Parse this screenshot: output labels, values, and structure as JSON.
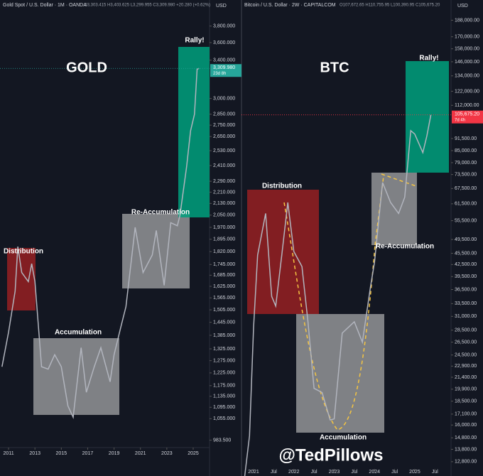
{
  "chart_data": [
    {
      "type": "line",
      "title": "GOLD",
      "subtitle": "Gold Spot / U.S. Dollar · 1M · OANDA",
      "ohlc": "O3,303.415 H3,403.625 L3,299.955 C3,309.980 +20.280 (+0.62%)",
      "y_label": "USD",
      "annotations": [
        "Distribution",
        "Accumulation",
        "Re-Accumulation",
        "Rally!"
      ],
      "last_price": {
        "value": 3309.98,
        "label": "3,309.980"
      },
      "countdown": "23d 8h",
      "log_scale": true,
      "xlim": [
        2010.35,
        2026.24
      ],
      "xticks": [
        2011,
        2013,
        2015,
        2017,
        2019,
        2021,
        2023,
        2025
      ],
      "ylim": [
        960,
        3950
      ],
      "yticks": [
        {
          "value": 3800,
          "label": "3,800.000"
        },
        {
          "value": 3600,
          "label": "3,600.000"
        },
        {
          "value": 3400,
          "label": "3,400.000"
        },
        {
          "value": 3000,
          "label": "3,000.000"
        },
        {
          "value": 2850,
          "label": "2,850.000"
        },
        {
          "value": 2750,
          "label": "2,750.000"
        },
        {
          "value": 2650,
          "label": "2,650.000"
        },
        {
          "value": 2530,
          "label": "2,530.000"
        },
        {
          "value": 2410,
          "label": "2,410.000"
        },
        {
          "value": 2290,
          "label": "2,290.000"
        },
        {
          "value": 2210,
          "label": "2,210.000"
        },
        {
          "value": 2130,
          "label": "2,130.000"
        },
        {
          "value": 2050,
          "label": "2,050.000"
        },
        {
          "value": 1970,
          "label": "1,970.000"
        },
        {
          "value": 1895,
          "label": "1,895.000"
        },
        {
          "value": 1820,
          "label": "1,820.000"
        },
        {
          "value": 1745,
          "label": "1,745.000"
        },
        {
          "value": 1685,
          "label": "1,685.000"
        },
        {
          "value": 1625,
          "label": "1,625.000"
        },
        {
          "value": 1565,
          "label": "1,565.000"
        },
        {
          "value": 1505,
          "label": "1,505.000"
        },
        {
          "value": 1445,
          "label": "1,445.000"
        },
        {
          "value": 1385,
          "label": "1,385.000"
        },
        {
          "value": 1325,
          "label": "1,325.000"
        },
        {
          "value": 1275,
          "label": "1,275.000"
        },
        {
          "value": 1225,
          "label": "1,225.000"
        },
        {
          "value": 1175,
          "label": "1,175.000"
        },
        {
          "value": 1135,
          "label": "1,135.000"
        },
        {
          "value": 1095,
          "label": "1,095.000"
        },
        {
          "value": 1055,
          "label": "1,055.000"
        },
        {
          "value": 983.5,
          "label": "983.500"
        }
      ],
      "color": "#b2b5be",
      "x": [
        2010.5,
        2011.0,
        2011.5,
        2011.7,
        2012.0,
        2012.5,
        2012.75,
        2013.0,
        2013.5,
        2014.0,
        2014.5,
        2015.0,
        2015.5,
        2015.9,
        2016.5,
        2016.9,
        2017.5,
        2018.0,
        2018.7,
        2019.0,
        2019.5,
        2019.9,
        2020.6,
        2021.2,
        2021.9,
        2022.2,
        2022.8,
        2023.3,
        2023.8,
        2024.0,
        2024.5,
        2024.8,
        2025.1,
        2025.3,
        2025.45
      ],
      "values": [
        1250,
        1400,
        1600,
        1850,
        1700,
        1650,
        1750,
        1650,
        1250,
        1240,
        1300,
        1250,
        1100,
        1060,
        1330,
        1150,
        1250,
        1330,
        1190,
        1300,
        1420,
        1520,
        1970,
        1700,
        1800,
        1950,
        1630,
        2000,
        1980,
        2050,
        2400,
        2700,
        2850,
        3300,
        3310
      ]
    },
    {
      "type": "line",
      "title": "BTC",
      "subtitle": "Bitcoin / U.S. Dollar · 2W · CAPITALCOM",
      "ohlc": "O107,672.65 H110,755.95 L100,390.95 C105,675.20",
      "y_label": "USD",
      "annotations": [
        "Distribution",
        "Accumulation",
        "Re-Accumulation",
        "Rally!"
      ],
      "last_price": {
        "value": 105675.2,
        "label": "105,675.20"
      },
      "countdown": "7d 4h",
      "log_scale": true,
      "xlim": [
        2020.7,
        2025.9
      ],
      "xticks": [
        2021,
        {
          "value": 2021.5,
          "label": "Jul"
        },
        2022,
        {
          "value": 2022.5,
          "label": "Jul"
        },
        2023,
        {
          "value": 2023.5,
          "label": "Jul"
        },
        2024,
        {
          "value": 2024.5,
          "label": "Jul"
        },
        2025,
        {
          "value": 2025.5,
          "label": "Jul"
        }
      ],
      "ylim": [
        12250,
        195000
      ],
      "yticks": [
        {
          "value": 188000,
          "label": "188,000.00"
        },
        {
          "value": 170000,
          "label": "170,000.00"
        },
        {
          "value": 158000,
          "label": "158,000.00"
        },
        {
          "value": 146000,
          "label": "146,000.00"
        },
        {
          "value": 134000,
          "label": "134,000.00"
        },
        {
          "value": 122000,
          "label": "122,000.00"
        },
        {
          "value": 112000,
          "label": "112,000.00"
        },
        {
          "value": 91500,
          "label": "91,500.00"
        },
        {
          "value": 85000,
          "label": "85,000.00"
        },
        {
          "value": 79000,
          "label": "79,000.00"
        },
        {
          "value": 73500,
          "label": "73,500.00"
        },
        {
          "value": 67500,
          "label": "67,500.00"
        },
        {
          "value": 61500,
          "label": "61,500.00"
        },
        {
          "value": 55500,
          "label": "55,500.00"
        },
        {
          "value": 49500,
          "label": "49,500.00"
        },
        {
          "value": 45500,
          "label": "45,500.00"
        },
        {
          "value": 42500,
          "label": "42,500.00"
        },
        {
          "value": 39500,
          "label": "39,500.00"
        },
        {
          "value": 36500,
          "label": "36,500.00"
        },
        {
          "value": 33500,
          "label": "33,500.00"
        },
        {
          "value": 31000,
          "label": "31,000.00"
        },
        {
          "value": 28500,
          "label": "28,500.00"
        },
        {
          "value": 26500,
          "label": "26,500.00"
        },
        {
          "value": 24500,
          "label": "24,500.00"
        },
        {
          "value": 22900,
          "label": "22,900.00"
        },
        {
          "value": 21400,
          "label": "21,400.00"
        },
        {
          "value": 19900,
          "label": "19,900.00"
        },
        {
          "value": 18500,
          "label": "18,500.00"
        },
        {
          "value": 17100,
          "label": "17,100.00"
        },
        {
          "value": 16000,
          "label": "16,000.00"
        },
        {
          "value": 14800,
          "label": "14,800.00"
        },
        {
          "value": 13800,
          "label": "13,800.00"
        },
        {
          "value": 12800,
          "label": "12,800.00"
        }
      ],
      "color": "#b2b5be",
      "x": [
        2020.75,
        2020.9,
        2021.0,
        2021.1,
        2021.3,
        2021.45,
        2021.55,
        2021.7,
        2021.85,
        2022.0,
        2022.2,
        2022.35,
        2022.5,
        2022.7,
        2022.9,
        2023.0,
        2023.2,
        2023.5,
        2023.7,
        2023.9,
        2024.0,
        2024.2,
        2024.4,
        2024.6,
        2024.75,
        2024.9,
        2025.0,
        2025.2,
        2025.3,
        2025.4
      ],
      "values": [
        11000,
        15000,
        29000,
        45000,
        58000,
        35000,
        33000,
        45000,
        62000,
        46000,
        42000,
        30000,
        20000,
        19500,
        16500,
        16600,
        28000,
        30000,
        26500,
        37000,
        43000,
        70000,
        62000,
        58000,
        64000,
        96000,
        94000,
        84000,
        93000,
        105675
      ]
    }
  ],
  "watermark": "@TedPillows"
}
